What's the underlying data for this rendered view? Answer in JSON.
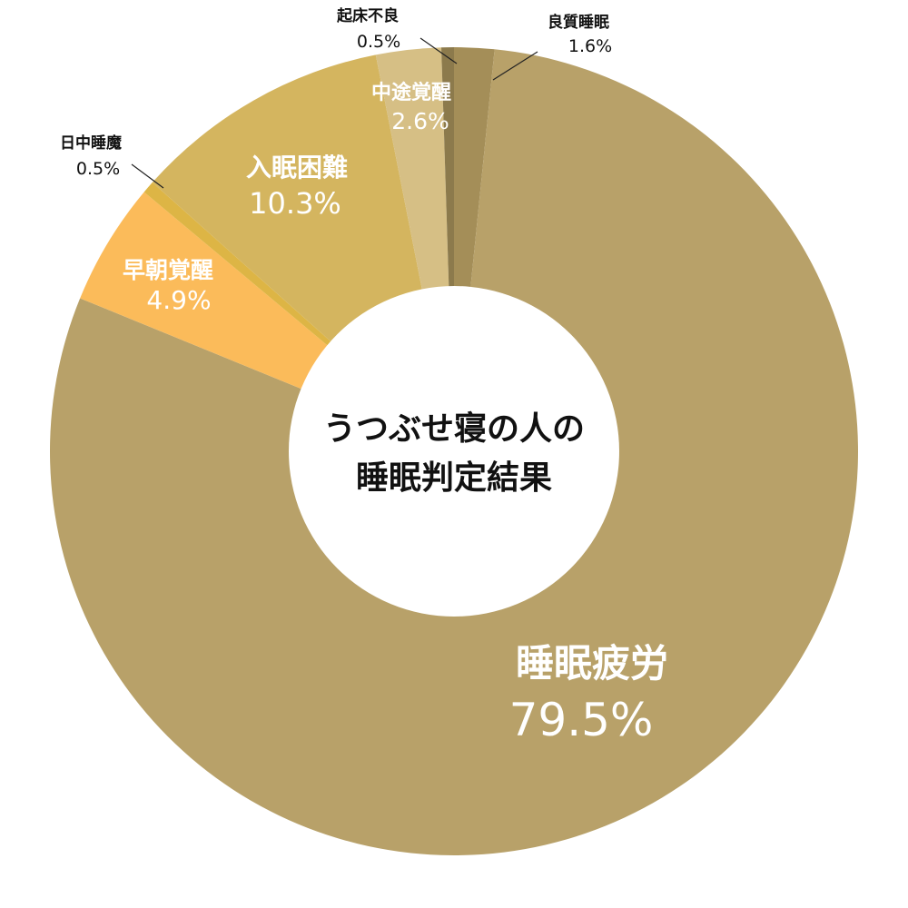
{
  "chart_data": {
    "type": "pie",
    "title_lines": [
      "うつぶせ寝の人の",
      "睡眠判定結果"
    ],
    "slices": [
      {
        "label": "良質睡眠",
        "value": 1.6,
        "value_text": "1.6%",
        "color": "#a48e58"
      },
      {
        "label": "睡眠疲労",
        "value": 79.5,
        "value_text": "79.5%",
        "color": "#b8a169"
      },
      {
        "label": "早朝覚醒",
        "value": 4.9,
        "value_text": "4.9%",
        "color": "#fbbb5a"
      },
      {
        "label": "日中睡魔",
        "value": 0.5,
        "value_text": "0.5%",
        "color": "#ddb545"
      },
      {
        "label": "入眠困難",
        "value": 10.3,
        "value_text": "10.3%",
        "color": "#d4b55f"
      },
      {
        "label": "中途覚醒",
        "value": 2.6,
        "value_text": "2.6%",
        "color": "#d6bf85"
      },
      {
        "label": "起床不良",
        "value": 0.5,
        "value_text": "0.5%",
        "color": "#8c7a4c"
      }
    ]
  }
}
